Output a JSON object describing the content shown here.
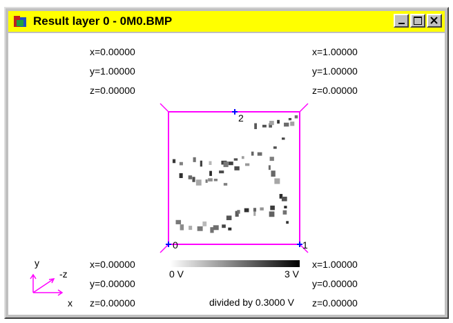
{
  "window": {
    "title": "Result layer 0 - 0M0.BMP"
  },
  "corners": {
    "top_left": [
      "x=0.00000",
      "y=1.00000",
      "z=0.00000"
    ],
    "top_right": [
      "x=1.00000",
      "y=1.00000",
      "z=0.00000"
    ],
    "bottom_left": [
      "x=0.00000",
      "y=0.00000",
      "z=0.00000"
    ],
    "bottom_right": [
      "x=1.00000",
      "y=0.00000",
      "z=0.00000"
    ]
  },
  "markers": [
    "0",
    "1",
    "2"
  ],
  "colorbar": {
    "min_label": "0 V",
    "max_label": "3 V",
    "note": "divided by 0.3000 V"
  },
  "axes_icon": {
    "y": "y",
    "z": "-z",
    "x": "x"
  }
}
